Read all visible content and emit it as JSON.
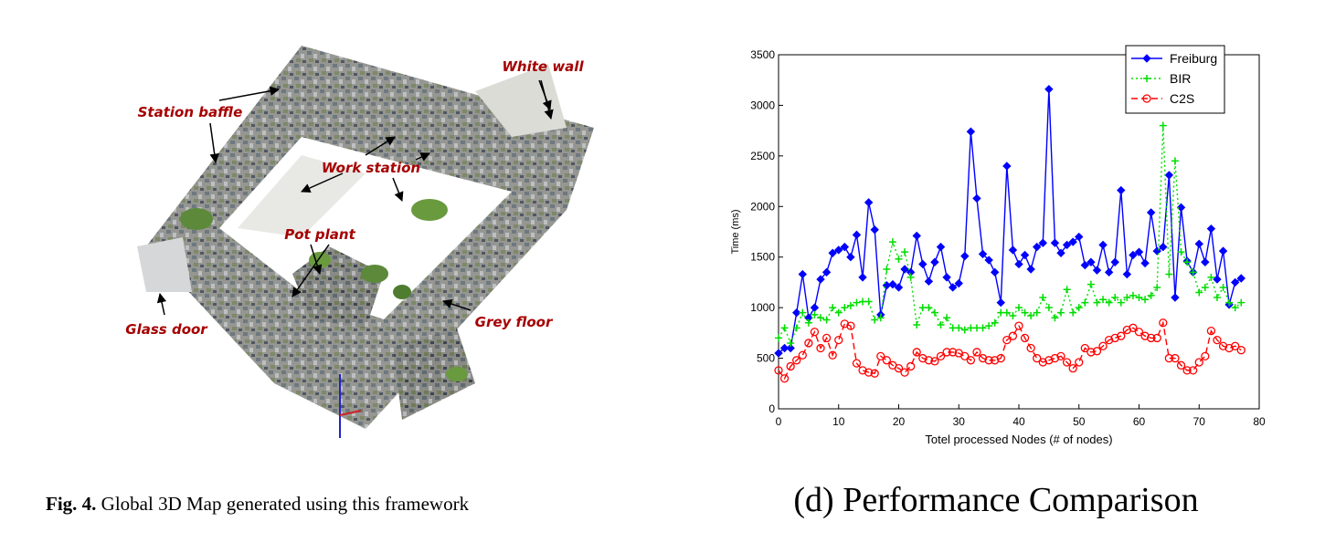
{
  "map_figure": {
    "annotations": [
      "White wall",
      "Station baffle",
      "Work station",
      "Pot plant",
      "Glass door",
      "Grey floor"
    ],
    "caption": {
      "label": "Fig. 4.",
      "text": "Global 3D Map generated using this framework"
    }
  },
  "chart_data": {
    "type": "line",
    "xlabel": "Totel processed Nodes (# of nodes)",
    "ylabel": "Time (ms)",
    "x": [
      0,
      1,
      2,
      3,
      4,
      5,
      6,
      7,
      8,
      9,
      10,
      11,
      12,
      13,
      14,
      15,
      16,
      17,
      18,
      19,
      20,
      21,
      22,
      23,
      24,
      25,
      26,
      27,
      28,
      29,
      30,
      31,
      32,
      33,
      34,
      35,
      36,
      37,
      38,
      39,
      40,
      41,
      42,
      43,
      44,
      45,
      46,
      47,
      48,
      49,
      50,
      51,
      52,
      53,
      54,
      55,
      56,
      57,
      58,
      59,
      60,
      61,
      62,
      63,
      64,
      65,
      66,
      67,
      68,
      69,
      70,
      71,
      72,
      73,
      74,
      75,
      76,
      77
    ],
    "series": [
      {
        "name": "Freiburg",
        "color": "#0000ff",
        "linestyle": "solid",
        "marker": "diamond",
        "values": [
          550,
          600,
          600,
          950,
          1330,
          900,
          1000,
          1280,
          1350,
          1540,
          1570,
          1600,
          1500,
          1720,
          1300,
          2040,
          1770,
          930,
          1220,
          1230,
          1200,
          1380,
          1350,
          1710,
          1430,
          1260,
          1450,
          1600,
          1300,
          1200,
          1240,
          1510,
          2740,
          2080,
          1530,
          1470,
          1350,
          1050,
          2400,
          1570,
          1430,
          1520,
          1380,
          1600,
          1640,
          3160,
          1640,
          1540,
          1620,
          1650,
          1700,
          1420,
          1450,
          1370,
          1620,
          1350,
          1450,
          2160,
          1330,
          1520,
          1550,
          1440,
          1940,
          1560,
          1600,
          2310,
          1100,
          1990,
          1460,
          1350,
          1630,
          1450,
          1780,
          1280,
          1560,
          1030,
          1250,
          1290
        ]
      },
      {
        "name": "BIR",
        "color": "#00dd00",
        "linestyle": "dotted",
        "marker": "plus",
        "values": [
          700,
          800,
          650,
          800,
          950,
          850,
          930,
          900,
          880,
          1000,
          950,
          1000,
          1020,
          1050,
          1060,
          1060,
          880,
          900,
          1380,
          1650,
          1480,
          1550,
          1300,
          830,
          1000,
          1000,
          950,
          830,
          900,
          800,
          800,
          780,
          800,
          800,
          800,
          820,
          850,
          950,
          950,
          920,
          1000,
          950,
          920,
          950,
          1100,
          1000,
          900,
          950,
          1180,
          950,
          1000,
          1050,
          1230,
          1050,
          1080,
          1050,
          1100,
          1050,
          1100,
          1120,
          1100,
          1080,
          1120,
          1200,
          2800,
          1330,
          2450,
          1550,
          1450,
          1350,
          1150,
          1200,
          1300,
          1100,
          1200,
          1050,
          1000,
          1050
        ]
      },
      {
        "name": "C2S",
        "color": "#ff0000",
        "linestyle": "dashed",
        "marker": "circle",
        "values": [
          380,
          300,
          420,
          480,
          530,
          650,
          760,
          600,
          700,
          530,
          680,
          840,
          820,
          450,
          380,
          360,
          350,
          520,
          480,
          430,
          400,
          360,
          420,
          560,
          500,
          480,
          470,
          520,
          560,
          560,
          550,
          520,
          480,
          560,
          500,
          480,
          480,
          500,
          680,
          720,
          820,
          700,
          600,
          500,
          460,
          480,
          500,
          520,
          460,
          400,
          460,
          600,
          560,
          570,
          620,
          680,
          700,
          720,
          780,
          800,
          760,
          720,
          700,
          700,
          850,
          500,
          500,
          430,
          380,
          380,
          460,
          520,
          770,
          680,
          620,
          600,
          620,
          580
        ]
      }
    ],
    "xlim": [
      0,
      80
    ],
    "xticks": [
      0,
      10,
      20,
      30,
      40,
      50,
      60,
      70,
      80
    ],
    "ylim": [
      0,
      3500
    ],
    "yticks": [
      0,
      500,
      1000,
      1500,
      2000,
      2500,
      3000,
      3500
    ],
    "legend": "upper right",
    "caption": "(d) Performance Comparison"
  }
}
